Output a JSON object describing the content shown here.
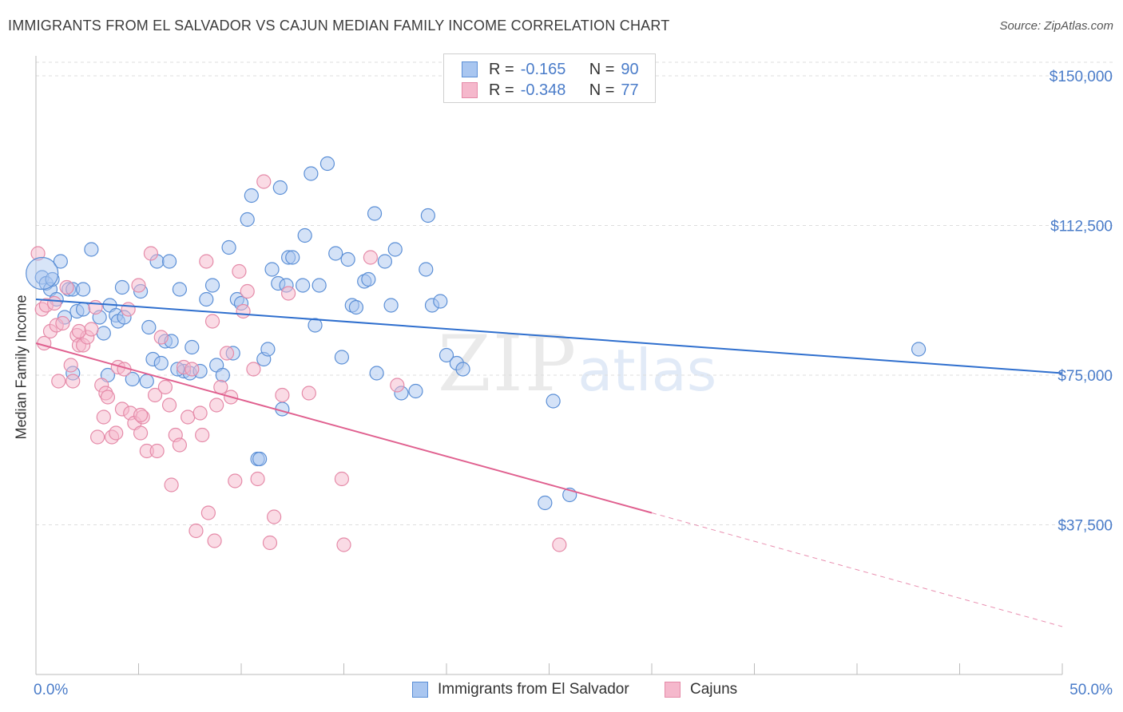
{
  "header": {
    "title": "IMMIGRANTS FROM EL SALVADOR VS CAJUN MEDIAN FAMILY INCOME CORRELATION CHART",
    "source": "Source: ZipAtlas.com"
  },
  "watermark": {
    "zip": "ZIP",
    "atlas": "atlas"
  },
  "colors": {
    "blue_fill": "#a9c6f0",
    "blue_stroke": "#5b8fd6",
    "blue_line": "#2f6fce",
    "pink_fill": "#f5b8cc",
    "pink_stroke": "#e58aa8",
    "pink_line": "#e0608f",
    "axis_text": "#4a7cc9",
    "grid": "#dddddd"
  },
  "legend": {
    "rows": [
      {
        "r_label": "R =",
        "r_value": "-0.165",
        "n_label": "N =",
        "n_value": "90"
      },
      {
        "r_label": "R =",
        "r_value": "-0.348",
        "n_label": "N =",
        "n_value": "77"
      }
    ]
  },
  "bottom_legend": {
    "series1": "Immigrants from El Salvador",
    "series2": "Cajuns"
  },
  "chart_data": {
    "type": "scatter",
    "title": "IMMIGRANTS FROM EL SALVADOR VS CAJUN MEDIAN FAMILY INCOME CORRELATION CHART",
    "xlabel": "",
    "ylabel": "Median Family Income",
    "xlim": [
      0,
      50
    ],
    "ylim": [
      0,
      155000
    ],
    "x_tick_labels": [
      "0.0%",
      "50.0%"
    ],
    "y_ticks": [
      37500,
      75000,
      112500,
      150000
    ],
    "y_tick_labels": [
      "$37,500",
      "$75,000",
      "$112,500",
      "$150,000"
    ],
    "grid": "horizontal dashed",
    "legend_position": "top-center",
    "series": [
      {
        "name": "Immigrants from El Salvador",
        "color": "#a9c6f0",
        "trend": {
          "x": [
            0,
            50
          ],
          "y": [
            94000,
            75500
          ],
          "style": "solid"
        },
        "points": [
          [
            0.3,
            99500
          ],
          [
            0.5,
            98000
          ],
          [
            0.7,
            96500
          ],
          [
            0.8,
            99000
          ],
          [
            1.0,
            94000
          ],
          [
            1.2,
            103500
          ],
          [
            1.4,
            89500
          ],
          [
            1.6,
            96500
          ],
          [
            1.8,
            96500
          ],
          [
            2.0,
            91000
          ],
          [
            2.3,
            91500
          ],
          [
            2.7,
            106500
          ],
          [
            3.1,
            89500
          ],
          [
            3.3,
            85500
          ],
          [
            3.6,
            92500
          ],
          [
            3.9,
            90000
          ],
          [
            4.0,
            88500
          ],
          [
            4.3,
            89500
          ],
          [
            4.2,
            97000
          ],
          [
            4.7,
            74000
          ],
          [
            5.1,
            96000
          ],
          [
            5.4,
            73500
          ],
          [
            5.5,
            87000
          ],
          [
            5.7,
            79000
          ],
          [
            5.9,
            103500
          ],
          [
            6.1,
            78000
          ],
          [
            6.3,
            83500
          ],
          [
            6.5,
            103500
          ],
          [
            6.6,
            83500
          ],
          [
            7.0,
            96500
          ],
          [
            7.2,
            76000
          ],
          [
            7.5,
            75500
          ],
          [
            7.6,
            82000
          ],
          [
            8.0,
            76000
          ],
          [
            8.3,
            94000
          ],
          [
            8.6,
            97500
          ],
          [
            8.8,
            77500
          ],
          [
            9.1,
            75000
          ],
          [
            9.4,
            107000
          ],
          [
            9.6,
            80500
          ],
          [
            9.8,
            94000
          ],
          [
            10.0,
            93000
          ],
          [
            10.3,
            114000
          ],
          [
            10.5,
            120000
          ],
          [
            10.8,
            54000
          ],
          [
            10.9,
            54000
          ],
          [
            11.1,
            79000
          ],
          [
            11.3,
            81500
          ],
          [
            11.5,
            101500
          ],
          [
            11.8,
            98000
          ],
          [
            11.9,
            122000
          ],
          [
            12.2,
            97500
          ],
          [
            12.3,
            104500
          ],
          [
            12.5,
            104500
          ],
          [
            13.0,
            97500
          ],
          [
            13.1,
            110000
          ],
          [
            13.4,
            125500
          ],
          [
            13.6,
            87500
          ],
          [
            13.8,
            97500
          ],
          [
            14.2,
            128000
          ],
          [
            14.6,
            105500
          ],
          [
            14.9,
            79500
          ],
          [
            15.2,
            104000
          ],
          [
            15.4,
            92500
          ],
          [
            15.6,
            92000
          ],
          [
            16.0,
            98500
          ],
          [
            16.2,
            99000
          ],
          [
            16.5,
            115500
          ],
          [
            16.6,
            75500
          ],
          [
            17.0,
            103500
          ],
          [
            17.3,
            92500
          ],
          [
            17.5,
            106500
          ],
          [
            17.8,
            70500
          ],
          [
            18.5,
            71000
          ],
          [
            19.0,
            101500
          ],
          [
            19.1,
            115000
          ],
          [
            19.3,
            92500
          ],
          [
            19.7,
            93500
          ],
          [
            20.0,
            80000
          ],
          [
            20.5,
            78000
          ],
          [
            20.8,
            76500
          ],
          [
            24.8,
            43000
          ],
          [
            25.2,
            68500
          ],
          [
            26.0,
            45000
          ],
          [
            43.0,
            81500
          ],
          [
            1.8,
            75500
          ],
          [
            3.5,
            75000
          ],
          [
            6.9,
            76500
          ],
          [
            12.0,
            66500
          ],
          [
            2.3,
            96500
          ]
        ]
      },
      {
        "name": "Cajuns",
        "color": "#f5b8cc",
        "trend": {
          "x": [
            0,
            30
          ],
          "y": [
            83000,
            40500
          ],
          "style": "solid",
          "extension": {
            "x": [
              30,
              50
            ],
            "y": [
              40500,
              12000
            ],
            "style": "dashed"
          }
        },
        "points": [
          [
            0.1,
            105500
          ],
          [
            0.3,
            91500
          ],
          [
            0.4,
            83000
          ],
          [
            0.5,
            92500
          ],
          [
            0.7,
            86000
          ],
          [
            0.9,
            93000
          ],
          [
            1.0,
            87500
          ],
          [
            1.1,
            73500
          ],
          [
            1.3,
            88000
          ],
          [
            1.5,
            97000
          ],
          [
            1.7,
            77500
          ],
          [
            1.8,
            73500
          ],
          [
            2.0,
            85000
          ],
          [
            2.1,
            82500
          ],
          [
            2.3,
            82500
          ],
          [
            2.5,
            84500
          ],
          [
            2.7,
            86500
          ],
          [
            2.9,
            92000
          ],
          [
            3.0,
            59500
          ],
          [
            3.2,
            72500
          ],
          [
            3.3,
            64500
          ],
          [
            3.4,
            70500
          ],
          [
            3.5,
            69500
          ],
          [
            3.7,
            59500
          ],
          [
            3.9,
            60500
          ],
          [
            4.0,
            77000
          ],
          [
            4.2,
            66500
          ],
          [
            4.3,
            76500
          ],
          [
            4.5,
            91500
          ],
          [
            4.6,
            65500
          ],
          [
            4.8,
            63000
          ],
          [
            5.0,
            97500
          ],
          [
            5.1,
            60500
          ],
          [
            5.2,
            64500
          ],
          [
            5.4,
            56000
          ],
          [
            5.6,
            105500
          ],
          [
            5.8,
            70000
          ],
          [
            5.9,
            56000
          ],
          [
            6.1,
            84500
          ],
          [
            6.3,
            72000
          ],
          [
            6.5,
            67500
          ],
          [
            6.6,
            47500
          ],
          [
            6.8,
            60000
          ],
          [
            7.0,
            57500
          ],
          [
            7.2,
            77000
          ],
          [
            7.4,
            64500
          ],
          [
            7.6,
            76500
          ],
          [
            7.8,
            36000
          ],
          [
            8.0,
            65500
          ],
          [
            8.1,
            60000
          ],
          [
            8.3,
            103500
          ],
          [
            8.4,
            40500
          ],
          [
            8.6,
            88500
          ],
          [
            8.7,
            33500
          ],
          [
            8.8,
            67500
          ],
          [
            9.0,
            72000
          ],
          [
            9.3,
            80500
          ],
          [
            9.5,
            69500
          ],
          [
            9.7,
            48500
          ],
          [
            9.9,
            101000
          ],
          [
            10.1,
            91000
          ],
          [
            10.3,
            96000
          ],
          [
            10.6,
            76500
          ],
          [
            10.8,
            49000
          ],
          [
            11.1,
            123500
          ],
          [
            11.4,
            33000
          ],
          [
            11.6,
            39500
          ],
          [
            12.0,
            70000
          ],
          [
            12.3,
            95500
          ],
          [
            13.3,
            70500
          ],
          [
            14.9,
            49000
          ],
          [
            15.0,
            32500
          ],
          [
            16.3,
            104500
          ],
          [
            17.6,
            72500
          ],
          [
            25.5,
            32500
          ],
          [
            5.1,
            65000
          ],
          [
            2.1,
            86000
          ]
        ]
      }
    ]
  }
}
